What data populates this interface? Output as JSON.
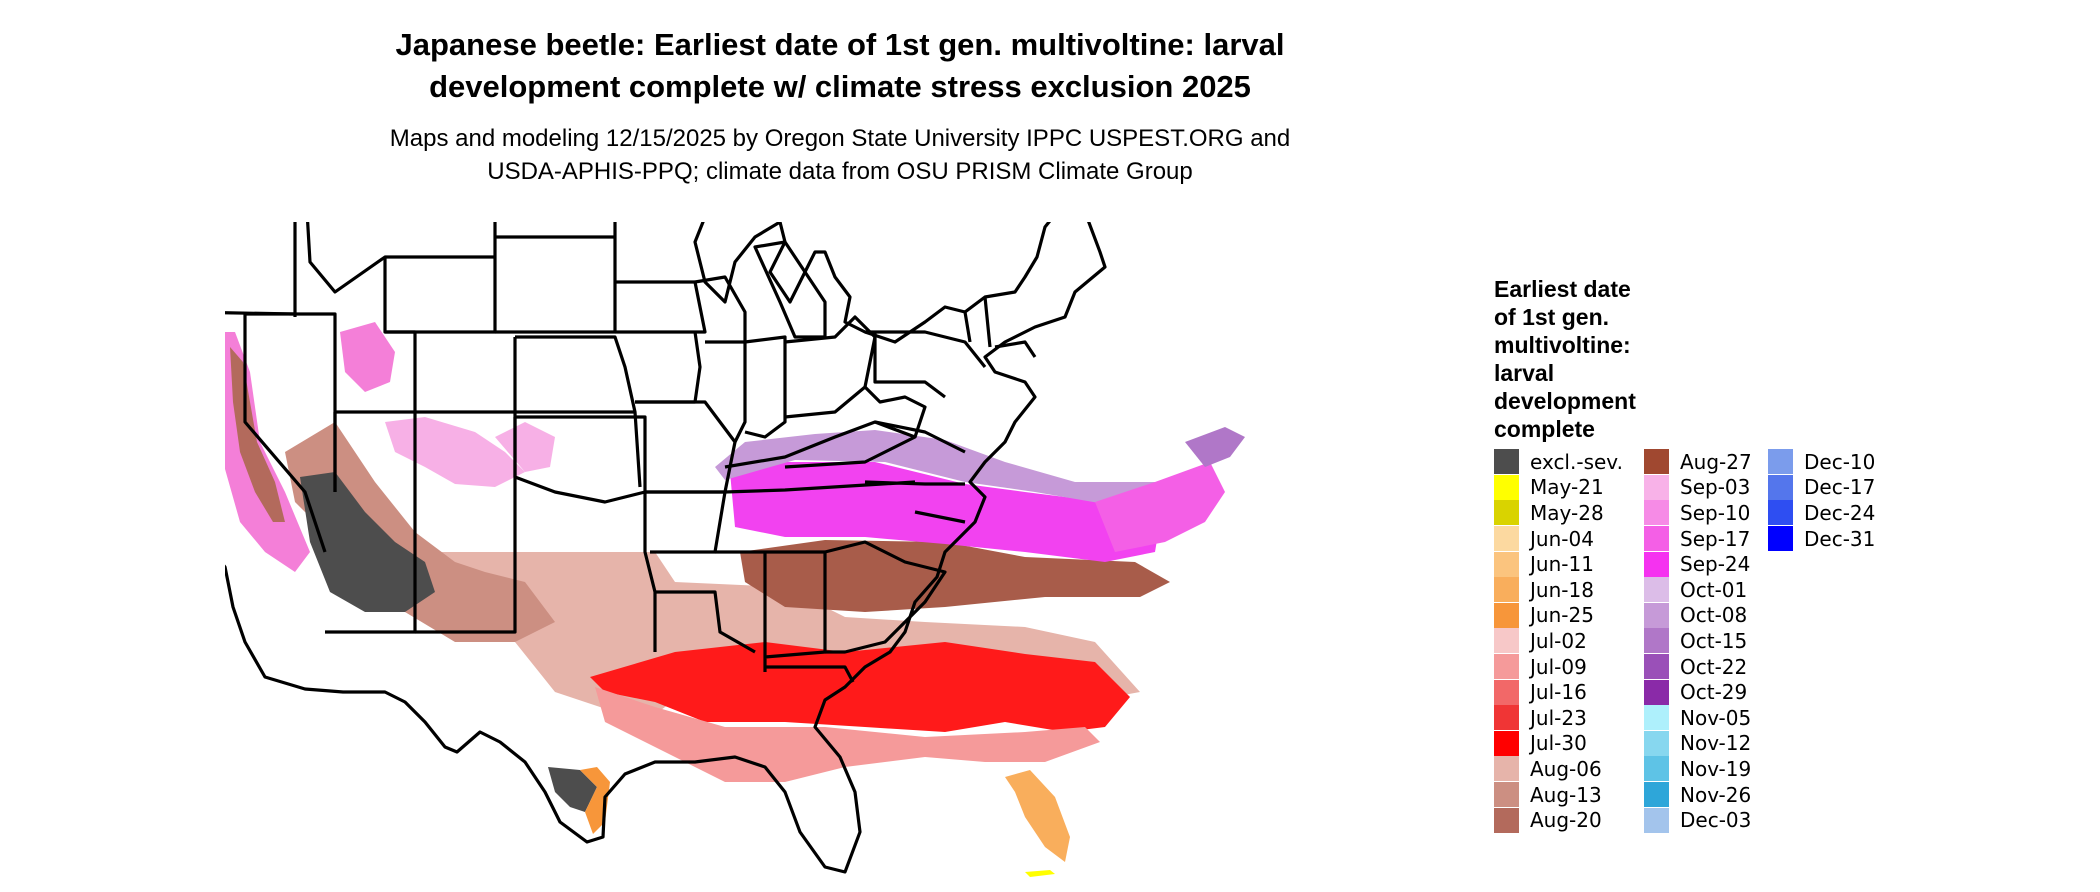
{
  "title_line1": "Japanese beetle: Earliest date of 1st gen. multivoltine: larval",
  "title_line2": "development complete w/ climate stress exclusion 2025",
  "subtitle_line1": "Maps and modeling 12/15/2025 by Oregon State University IPPC USPEST.ORG and",
  "subtitle_line2": "USDA-APHIS-PPQ; climate data from OSU PRISM Climate Group",
  "legend": {
    "title_lines": [
      "Earliest date",
      "of 1st gen.",
      "multivoltine:",
      "larval",
      "development",
      "complete"
    ],
    "columns": [
      [
        {
          "label": "excl.-sev.",
          "color": "#4d4d4d"
        },
        {
          "label": "May-21",
          "color": "#ffff00"
        },
        {
          "label": "May-28",
          "color": "#d9d300"
        },
        {
          "label": "Jun-04",
          "color": "#fcd9a0"
        },
        {
          "label": "Jun-11",
          "color": "#fbc47e"
        },
        {
          "label": "Jun-18",
          "color": "#f9ae5c"
        },
        {
          "label": "Jun-25",
          "color": "#f7963a"
        },
        {
          "label": "Jul-02",
          "color": "#f7c8c8"
        },
        {
          "label": "Jul-09",
          "color": "#f59a9a"
        },
        {
          "label": "Jul-16",
          "color": "#f26868"
        },
        {
          "label": "Jul-23",
          "color": "#f03535"
        },
        {
          "label": "Jul-30",
          "color": "#ff0000"
        },
        {
          "label": "Aug-06",
          "color": "#e6b4aa"
        },
        {
          "label": "Aug-13",
          "color": "#cc8f82"
        },
        {
          "label": "Aug-20",
          "color": "#b36a5c"
        }
      ],
      [
        {
          "label": "Aug-27",
          "color": "#a04830"
        },
        {
          "label": "Sep-03",
          "color": "#f8b2e8"
        },
        {
          "label": "Sep-10",
          "color": "#f68be6"
        },
        {
          "label": "Sep-17",
          "color": "#f45fe6"
        },
        {
          "label": "Sep-24",
          "color": "#f532f0"
        },
        {
          "label": "Oct-01",
          "color": "#dcbde8"
        },
        {
          "label": "Oct-08",
          "color": "#c69ad8"
        },
        {
          "label": "Oct-15",
          "color": "#b077c8"
        },
        {
          "label": "Oct-22",
          "color": "#9a50b8"
        },
        {
          "label": "Oct-29",
          "color": "#8a2aa8"
        },
        {
          "label": "Nov-05",
          "color": "#aef0fc"
        },
        {
          "label": "Nov-12",
          "color": "#87d7ef"
        },
        {
          "label": "Nov-19",
          "color": "#5ec3e6"
        },
        {
          "label": "Nov-26",
          "color": "#2ea6d9"
        },
        {
          "label": "Dec-03",
          "color": "#a3c4ec"
        }
      ],
      [
        {
          "label": "Dec-10",
          "color": "#7b9cec"
        },
        {
          "label": "Dec-17",
          "color": "#5476ec"
        },
        {
          "label": "Dec-24",
          "color": "#2e4ef2"
        },
        {
          "label": "Dec-31",
          "color": "#0000ff"
        }
      ]
    ]
  }
}
